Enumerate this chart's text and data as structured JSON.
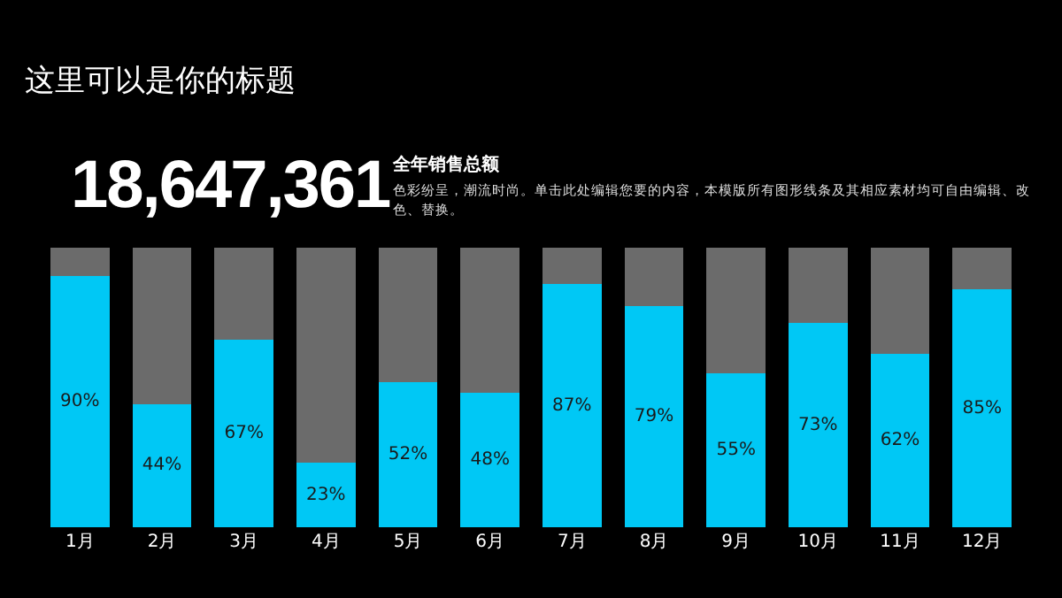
{
  "chart_data": {
    "type": "bar",
    "title": "这里可以是你的标题",
    "annotations": [
      "18,647,361",
      "全年销售总额",
      "色彩纷呈，潮流时尚。单击此处编辑您要的内容，本模版所有图形线条及其相应素材均可自由编辑、改色、替换。"
    ],
    "categories": [
      "1月",
      "2月",
      "3月",
      "4月",
      "5月",
      "6月",
      "7月",
      "8月",
      "9月",
      "10月",
      "11月",
      "12月"
    ],
    "stacked": true,
    "series": [
      {
        "color": "#00c8f5",
        "values": [
          90,
          44,
          67,
          23,
          52,
          48,
          87,
          79,
          55,
          73,
          62,
          85
        ],
        "value_labels": [
          "90%",
          "44%",
          "67%",
          "23%",
          "52%",
          "48%",
          "87%",
          "79%",
          "55%",
          "73%",
          "62%",
          "85%"
        ]
      },
      {
        "color": "#6b6b6b",
        "values": [
          10,
          56,
          33,
          77,
          48,
          52,
          13,
          21,
          45,
          27,
          38,
          15
        ]
      }
    ],
    "ylim": [
      0,
      100
    ],
    "tick_labels": "x"
  }
}
